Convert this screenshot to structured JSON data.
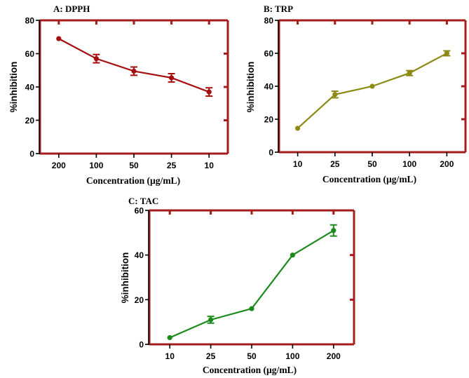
{
  "chart_data": [
    {
      "id": "dpph",
      "type": "line",
      "title": "A: DPPH",
      "categories": [
        "200",
        "100",
        "50",
        "25",
        "10"
      ],
      "values": [
        69,
        57,
        49.5,
        45.5,
        37
      ],
      "errors": [
        0,
        2.5,
        2.5,
        2.5,
        2.5
      ],
      "xlabel": "Concentration (µg/mL)",
      "ylabel": "%inhibition",
      "ylim": [
        0,
        80
      ],
      "yticks": [
        "0",
        "20",
        "40",
        "60",
        "80"
      ],
      "color": "#a50f0f",
      "frame_color": "#a51c1c"
    },
    {
      "id": "trp",
      "type": "line",
      "title": "B: TRP",
      "categories": [
        "10",
        "25",
        "50",
        "100",
        "200"
      ],
      "values": [
        14.5,
        35,
        40,
        48,
        60
      ],
      "errors": [
        0,
        2,
        0,
        1.5,
        1.5
      ],
      "xlabel": "Concentration (µg/mL)",
      "ylabel": "%inhibition",
      "ylim": [
        0,
        80
      ],
      "yticks": [
        "0",
        "20",
        "40",
        "60",
        "80"
      ],
      "color": "#8c8a14",
      "frame_color": "#a51c1c"
    },
    {
      "id": "tac",
      "type": "line",
      "title": "C: TAC",
      "categories": [
        "10",
        "25",
        "50",
        "100",
        "200"
      ],
      "values": [
        3,
        11,
        16,
        40,
        51
      ],
      "errors": [
        0,
        1.5,
        0,
        0,
        2.5
      ],
      "xlabel": "Concentration (µg/mL)",
      "ylabel": "%inhibition",
      "ylim": [
        0,
        60
      ],
      "yticks": [
        "0",
        "20",
        "40",
        "60"
      ],
      "color": "#1a8a1a",
      "frame_color": "#a51c1c"
    }
  ]
}
